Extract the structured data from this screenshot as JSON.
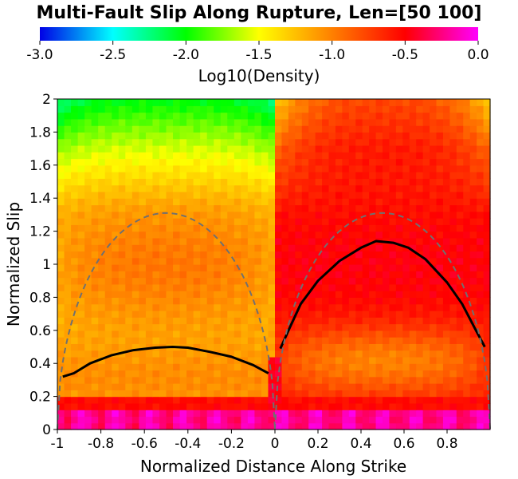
{
  "chart_data": {
    "type": "heatmap",
    "title": "Multi-Fault Slip Along Rupture, Len=[50 100]",
    "xlabel": "Normalized Distance Along Strike",
    "ylabel": "Normalized Slip",
    "xlim": [
      -1,
      1
    ],
    "ylim": [
      0,
      2
    ],
    "x_ticks": [
      "-1",
      "-0.8",
      "-0.6",
      "-0.4",
      "-0.2",
      "0",
      "0.2",
      "0.4",
      "0.6",
      "0.8"
    ],
    "x_tick_values": [
      -1,
      -0.8,
      -0.6,
      -0.4,
      -0.2,
      0,
      0.2,
      0.4,
      0.6,
      0.8
    ],
    "y_ticks": [
      "0",
      "0.2",
      "0.4",
      "0.6",
      "0.8",
      "1",
      "1.2",
      "1.4",
      "1.6",
      "1.8",
      "2"
    ],
    "y_tick_values": [
      0,
      0.2,
      0.4,
      0.6,
      0.8,
      1,
      1.2,
      1.4,
      1.6,
      1.8,
      2
    ],
    "colorbar": {
      "label": "Log10(Density)",
      "range": [
        -3.0,
        0.0
      ],
      "ticks": [
        "-3.0",
        "-2.5",
        "-2.0",
        "-1.5",
        "-1.0",
        "-0.5",
        "0.0"
      ],
      "tick_values": [
        -3.0,
        -2.5,
        -2.0,
        -1.5,
        -1.0,
        -0.5,
        0.0
      ],
      "colormap": [
        "#0000e6",
        "#00ffff",
        "#00ff00",
        "#ffff00",
        "#ff8000",
        "#ff0000",
        "#ff00ff"
      ]
    },
    "series": [
      {
        "style": "solid-black",
        "x": [
          -0.975,
          -0.925,
          -0.85,
          -0.75,
          -0.65,
          -0.55,
          -0.47,
          -0.4,
          -0.3,
          -0.2,
          -0.1,
          -0.03
        ],
        "y": [
          0.32,
          0.34,
          0.4,
          0.45,
          0.48,
          0.495,
          0.5,
          0.495,
          0.47,
          0.44,
          0.39,
          0.34
        ]
      },
      {
        "style": "solid-black",
        "x": [
          0.025,
          0.07,
          0.12,
          0.2,
          0.3,
          0.4,
          0.47,
          0.55,
          0.62,
          0.7,
          0.8,
          0.87,
          0.93,
          0.975
        ],
        "y": [
          0.49,
          0.62,
          0.76,
          0.9,
          1.02,
          1.1,
          1.14,
          1.13,
          1.1,
          1.03,
          0.89,
          0.76,
          0.61,
          0.5
        ]
      },
      {
        "style": "dashed-gray",
        "shape": "half-ellipse",
        "segments": [
          {
            "center": -0.5,
            "half_width": 0.5,
            "peak": 1.31
          },
          {
            "center": 0.5,
            "half_width": 0.5,
            "peak": 1.31
          }
        ]
      }
    ]
  }
}
